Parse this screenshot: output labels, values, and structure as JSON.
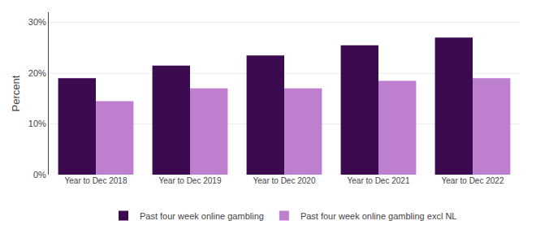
{
  "chart_data": {
    "type": "bar",
    "categories": [
      "Year to Dec 2018",
      "Year to Dec 2019",
      "Year to Dec 2020",
      "Year to Dec 2021",
      "Year to Dec 2022"
    ],
    "series": [
      {
        "name": "Past four week online gambling",
        "color": "#3b0a4f",
        "values": [
          19.0,
          21.5,
          23.5,
          25.5,
          27.0
        ]
      },
      {
        "name": "Past four week online gambling excl NL",
        "color": "#bf7fcf",
        "values": [
          14.5,
          17.0,
          17.0,
          18.5,
          19.0
        ]
      }
    ],
    "ylabel": "Percent",
    "ylim": [
      0,
      32
    ],
    "yticks": [
      {
        "value": 0,
        "label": "0%"
      },
      {
        "value": 10,
        "label": "10%"
      },
      {
        "value": 20,
        "label": "20%"
      },
      {
        "value": 30,
        "label": "30%"
      }
    ],
    "grid": true,
    "legend": "bottom"
  }
}
